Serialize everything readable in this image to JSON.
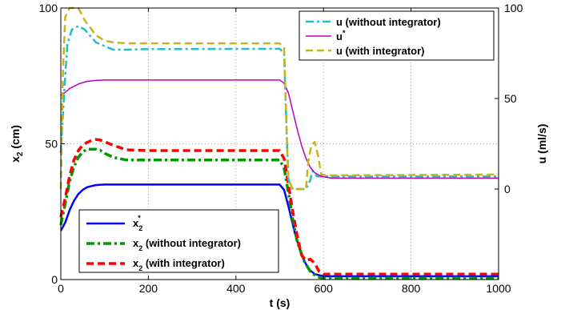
{
  "chart_data": {
    "type": "line",
    "xlabel": "t (s)",
    "ylabel_left_main": "x",
    "ylabel_left_sub": "2",
    "ylabel_left_unit": " (cm)",
    "ylabel_right": "u (ml/s)",
    "xlim": [
      0,
      1000
    ],
    "xticks": [
      "0",
      "200",
      "400",
      "600",
      "800",
      "1000"
    ],
    "ylim_left": [
      0,
      100
    ],
    "yticks_left": [
      "0",
      "50",
      "100"
    ],
    "ylim_right": [
      -50,
      100
    ],
    "yticks_right": [
      "0",
      "50",
      "100"
    ],
    "grid": true,
    "top_legend": {
      "position": "top-right",
      "entries": [
        {
          "text": "u (without integrator)",
          "series": "u_without"
        },
        {
          "text": "u",
          "sup": "*",
          "series": "u_star"
        },
        {
          "text": "u (with integrator)",
          "series": "u_with"
        }
      ]
    },
    "bottom_legend": {
      "position": "bottom-left",
      "entries": [
        {
          "text": "x",
          "sub": "2",
          "sup": "*",
          "rest": "",
          "series": "x2_star"
        },
        {
          "text": "x",
          "sub": "2",
          "rest": " (without integrator)",
          "series": "x2_without"
        },
        {
          "text": "x",
          "sub": "2",
          "rest": " (with integrator)",
          "series": "x2_with"
        }
      ]
    },
    "series": [
      {
        "key": "x2_star",
        "axis": "left",
        "color": "#0000ff",
        "dash": "",
        "width": 2.5,
        "points": [
          [
            0,
            18
          ],
          [
            10,
            21
          ],
          [
            20,
            25.5
          ],
          [
            30,
            29
          ],
          [
            40,
            31.5
          ],
          [
            50,
            33
          ],
          [
            60,
            34
          ],
          [
            80,
            34.8
          ],
          [
            100,
            35
          ],
          [
            500,
            35
          ],
          [
            510,
            33
          ],
          [
            520,
            27
          ],
          [
            535,
            17
          ],
          [
            550,
            9
          ],
          [
            565,
            4
          ],
          [
            580,
            2
          ],
          [
            600,
            1.2
          ],
          [
            1000,
            1.2
          ]
        ]
      },
      {
        "key": "x2_without",
        "axis": "left",
        "color": "#009900",
        "dash": "10 4 3 4",
        "width": 3.5,
        "points": [
          [
            0,
            20
          ],
          [
            10,
            28
          ],
          [
            20,
            36
          ],
          [
            30,
            41.5
          ],
          [
            40,
            45
          ],
          [
            50,
            47
          ],
          [
            60,
            48
          ],
          [
            70,
            48
          ],
          [
            80,
            48
          ],
          [
            90,
            47.6
          ],
          [
            100,
            46.5
          ],
          [
            120,
            45
          ],
          [
            150,
            44
          ],
          [
            200,
            44
          ],
          [
            500,
            44
          ],
          [
            510,
            41
          ],
          [
            520,
            32
          ],
          [
            530,
            22
          ],
          [
            540,
            14
          ],
          [
            555,
            7
          ],
          [
            570,
            3
          ],
          [
            585,
            1
          ],
          [
            600,
            0.5
          ],
          [
            1000,
            0.5
          ]
        ]
      },
      {
        "key": "x2_with",
        "axis": "left",
        "color": "#ff0000",
        "dash": "9 5",
        "width": 3.5,
        "points": [
          [
            0,
            23
          ],
          [
            10,
            30
          ],
          [
            20,
            38
          ],
          [
            30,
            44
          ],
          [
            40,
            47.5
          ],
          [
            50,
            49.5
          ],
          [
            60,
            50.5
          ],
          [
            70,
            51.2
          ],
          [
            80,
            51.6
          ],
          [
            90,
            51.4
          ],
          [
            100,
            50.8
          ],
          [
            120,
            49.4
          ],
          [
            150,
            47.8
          ],
          [
            200,
            47.5
          ],
          [
            500,
            47.5
          ],
          [
            510,
            44.5
          ],
          [
            520,
            35
          ],
          [
            530,
            25
          ],
          [
            540,
            16
          ],
          [
            550,
            9
          ],
          [
            560,
            7
          ],
          [
            570,
            7.5
          ],
          [
            580,
            6
          ],
          [
            590,
            3
          ],
          [
            600,
            2
          ],
          [
            1000,
            2
          ]
        ]
      },
      {
        "key": "u_without",
        "axis": "right",
        "color": "#20c0c0",
        "dash": "10 4 3 4",
        "width": 2.5,
        "points": [
          [
            0,
            20
          ],
          [
            8,
            55
          ],
          [
            15,
            80
          ],
          [
            25,
            88
          ],
          [
            40,
            90
          ],
          [
            55,
            88
          ],
          [
            80,
            81
          ],
          [
            100,
            79
          ],
          [
            120,
            77
          ],
          [
            150,
            77
          ],
          [
            200,
            77.3
          ],
          [
            500,
            77.5
          ],
          [
            510,
            75
          ],
          [
            516,
            30
          ],
          [
            520,
            5
          ],
          [
            530,
            0
          ],
          [
            560,
            0
          ],
          [
            570,
            5
          ],
          [
            575,
            10
          ],
          [
            585,
            7
          ],
          [
            595,
            7
          ],
          [
            620,
            7
          ],
          [
            1000,
            7
          ]
        ]
      },
      {
        "key": "u_star",
        "axis": "right",
        "color": "#c000c0",
        "dash": "",
        "width": 1.5,
        "points": [
          [
            0,
            52
          ],
          [
            8,
            53
          ],
          [
            20,
            55.5
          ],
          [
            40,
            58
          ],
          [
            60,
            59.5
          ],
          [
            80,
            60
          ],
          [
            100,
            60.2
          ],
          [
            500,
            60.2
          ],
          [
            510,
            58.5
          ],
          [
            520,
            53
          ],
          [
            530,
            43
          ],
          [
            540,
            33
          ],
          [
            550,
            24
          ],
          [
            560,
            17
          ],
          [
            570,
            12
          ],
          [
            580,
            9
          ],
          [
            595,
            7
          ],
          [
            620,
            6
          ],
          [
            1000,
            6
          ]
        ]
      },
      {
        "key": "u_with",
        "axis": "right",
        "color": "#c8b414",
        "dash": "9 5",
        "width": 2.5,
        "points": [
          [
            0,
            0
          ],
          [
            5,
            65
          ],
          [
            10,
            95
          ],
          [
            20,
            100
          ],
          [
            40,
            100
          ],
          [
            55,
            93
          ],
          [
            80,
            85
          ],
          [
            100,
            82
          ],
          [
            120,
            81
          ],
          [
            150,
            80.5
          ],
          [
            200,
            80.5
          ],
          [
            500,
            80.5
          ],
          [
            510,
            78
          ],
          [
            516,
            30
          ],
          [
            520,
            5
          ],
          [
            530,
            0
          ],
          [
            560,
            0
          ],
          [
            565,
            15
          ],
          [
            572,
            24
          ],
          [
            580,
            26
          ],
          [
            588,
            18
          ],
          [
            595,
            8
          ],
          [
            610,
            7.5
          ],
          [
            1000,
            8
          ]
        ]
      }
    ]
  }
}
